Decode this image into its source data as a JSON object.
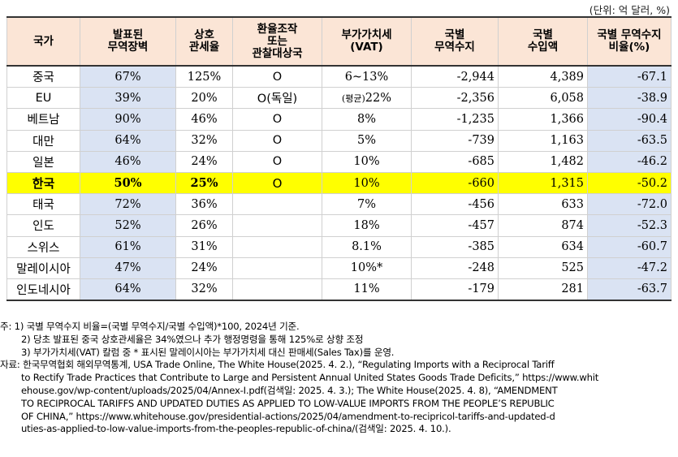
{
  "unit": "(단위: 억 달러, %)",
  "headers": {
    "country": "국가",
    "announced_barrier": [
      "발표된",
      "무역장벽"
    ],
    "reciprocal_tariff": [
      "상호",
      "관세율"
    ],
    "fx_watch": [
      "환율조작",
      "또는",
      "관찰대상국"
    ],
    "vat": [
      "부가가치세",
      "(VAT)"
    ],
    "trade_balance": [
      "국별",
      "무역수지"
    ],
    "imports": [
      "국별",
      "수입액"
    ],
    "ratio": [
      "국별 무역수지",
      "비율(%)"
    ]
  },
  "rows": [
    {
      "country": "중국",
      "barrier": "67%",
      "tariff": "125%",
      "fx": "O",
      "vat_prefix": "",
      "vat": "6~13%",
      "balance": "-2,944",
      "imports": "4,389",
      "ratio": "-67.1"
    },
    {
      "country": "EU",
      "barrier": "39%",
      "tariff": "20%",
      "fx": "O(독일)",
      "vat_prefix": "(평균)",
      "vat": "22%",
      "balance": "-2,356",
      "imports": "6,058",
      "ratio": "-38.9"
    },
    {
      "country": "베트남",
      "barrier": "90%",
      "tariff": "46%",
      "fx": "O",
      "vat_prefix": "",
      "vat": "8%",
      "balance": "-1,235",
      "imports": "1,366",
      "ratio": "-90.4"
    },
    {
      "country": "대만",
      "barrier": "64%",
      "tariff": "32%",
      "fx": "O",
      "vat_prefix": "",
      "vat": "5%",
      "balance": "-739",
      "imports": "1,163",
      "ratio": "-63.5"
    },
    {
      "country": "일본",
      "barrier": "46%",
      "tariff": "24%",
      "fx": "O",
      "vat_prefix": "",
      "vat": "10%",
      "balance": "-685",
      "imports": "1,482",
      "ratio": "-46.2"
    },
    {
      "country": "한국",
      "barrier": "50%",
      "tariff": "25%",
      "fx": "O",
      "vat_prefix": "",
      "vat": "10%",
      "balance": "-660",
      "imports": "1,315",
      "ratio": "-50.2"
    },
    {
      "country": "태국",
      "barrier": "72%",
      "tariff": "36%",
      "fx": "",
      "vat_prefix": "",
      "vat": "7%",
      "balance": "-456",
      "imports": "633",
      "ratio": "-72.0"
    },
    {
      "country": "인도",
      "barrier": "52%",
      "tariff": "26%",
      "fx": "",
      "vat_prefix": "",
      "vat": "18%",
      "balance": "-457",
      "imports": "874",
      "ratio": "-52.3"
    },
    {
      "country": "스위스",
      "barrier": "61%",
      "tariff": "31%",
      "fx": "",
      "vat_prefix": "",
      "vat": "8.1%",
      "balance": "-385",
      "imports": "634",
      "ratio": "-60.7"
    },
    {
      "country": "말레이시아",
      "barrier": "47%",
      "tariff": "24%",
      "fx": "",
      "vat_prefix": "",
      "vat": "10%*",
      "balance": "-248",
      "imports": "525",
      "ratio": "-47.2"
    },
    {
      "country": "인도네시아",
      "barrier": "64%",
      "tariff": "32%",
      "fx": "",
      "vat_prefix": "",
      "vat": "11%",
      "balance": "-179",
      "imports": "281",
      "ratio": "-63.7"
    }
  ],
  "notes": [
    "주: 1) 국별 무역수지 비율=(국별 무역수지/국별 수입액)*100, 2024년 기준.",
    "2) 당초 발표된 중국 상호관세율은 34%였으나 추가 행정명령을 통해 125%로 상향 조정",
    "3) 부가가치세(VAT) 칼럼 중 * 표시된 말레이시아는 부가가치세 대신 판매세(Sales Tax)를 운영."
  ],
  "source_lines": [
    "자료: 한국무역협회 해외무역통계, USA Trade Online, The White House(2025. 4. 2.), “Regulating Imports with a Reciprocal Tariff",
    "to Rectify Trade Practices that Contribute to Large and Persistent Annual United States Goods Trade Deficits,” https://www.whit",
    "ehouse.gov/wp-content/uploads/2025/04/Annex-I.pdf(검색일: 2025. 4. 3.); The White House(2025. 4. 8), “AMENDMENT",
    "TO RECIPROCAL TARIFFS AND UPDATED DUTIES AS APPLIED TO LOW-VALUE IMPORTS FROM THE PEOPLE’S REPUBLIC",
    "OF CHINA,” https://www.whitehouse.gov/presidential-actions/2025/04/amendment-to-recipricol-tariffs-and-updated-d",
    "uties-as-applied-to-low-value-imports-from-the-peoples-republic-of-china/(검색일: 2025. 4. 10.)."
  ],
  "highlight_country": "한국"
}
